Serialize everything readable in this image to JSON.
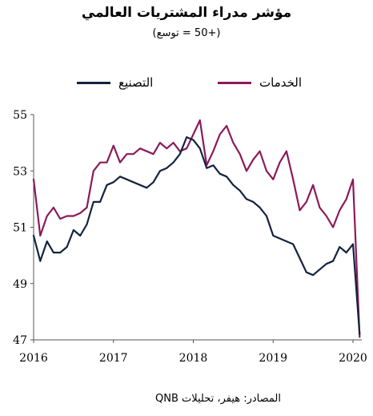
{
  "chart_data": {
    "type": "line",
    "title": "مؤشر مدراء المشتريات العالمي",
    "subtitle": "(+50 = توسع)",
    "source": "المصادر: هيفر، تحليلات QNB",
    "ylim": [
      47,
      55
    ],
    "xlim": [
      2016,
      2020.1
    ],
    "y_ticks": [
      "47",
      "49",
      "51",
      "53",
      "55"
    ],
    "x_ticks": [
      "2016",
      "2017",
      "2018",
      "2019",
      "2020"
    ],
    "grid": false,
    "legend_position": "top",
    "series": [
      {
        "name": "الخدمات",
        "color": "#8b1a5a",
        "x": [
          2016.0,
          2016.083,
          2016.167,
          2016.25,
          2016.333,
          2016.417,
          2016.5,
          2016.583,
          2016.667,
          2016.75,
          2016.833,
          2016.917,
          2017.0,
          2017.083,
          2017.167,
          2017.25,
          2017.333,
          2017.417,
          2017.5,
          2017.583,
          2017.667,
          2017.75,
          2017.833,
          2017.917,
          2018.0,
          2018.083,
          2018.167,
          2018.25,
          2018.333,
          2018.417,
          2018.5,
          2018.583,
          2018.667,
          2018.75,
          2018.833,
          2018.917,
          2019.0,
          2019.083,
          2019.167,
          2019.25,
          2019.333,
          2019.417,
          2019.5,
          2019.583,
          2019.667,
          2019.75,
          2019.833,
          2019.917,
          2020.0,
          2020.083
        ],
        "values": [
          52.7,
          50.7,
          51.4,
          51.7,
          51.3,
          51.4,
          51.4,
          51.5,
          51.7,
          53.0,
          53.3,
          53.3,
          53.9,
          53.3,
          53.6,
          53.6,
          53.8,
          53.7,
          53.6,
          54.0,
          53.8,
          54.0,
          53.7,
          53.8,
          54.3,
          54.8,
          53.2,
          53.7,
          54.3,
          54.6,
          54.0,
          53.6,
          53.0,
          53.4,
          53.7,
          53.0,
          52.7,
          53.3,
          53.7,
          52.7,
          51.6,
          51.9,
          52.5,
          51.7,
          51.4,
          51.0,
          51.6,
          52.0,
          52.7,
          47.1
        ]
      },
      {
        "name": "التصنيع",
        "color": "#13233f",
        "x": [
          2016.0,
          2016.083,
          2016.167,
          2016.25,
          2016.333,
          2016.417,
          2016.5,
          2016.583,
          2016.667,
          2016.75,
          2016.833,
          2016.917,
          2017.0,
          2017.083,
          2017.167,
          2017.25,
          2017.333,
          2017.417,
          2017.5,
          2017.583,
          2017.667,
          2017.75,
          2017.833,
          2017.917,
          2018.0,
          2018.083,
          2018.167,
          2018.25,
          2018.333,
          2018.417,
          2018.5,
          2018.583,
          2018.667,
          2018.75,
          2018.833,
          2018.917,
          2019.0,
          2019.083,
          2019.167,
          2019.25,
          2019.333,
          2019.417,
          2019.5,
          2019.583,
          2019.667,
          2019.75,
          2019.833,
          2019.917,
          2020.0,
          2020.083
        ],
        "values": [
          50.7,
          49.8,
          50.5,
          50.1,
          50.1,
          50.3,
          50.9,
          50.7,
          51.1,
          51.9,
          51.9,
          52.5,
          52.6,
          52.8,
          52.7,
          52.6,
          52.5,
          52.4,
          52.6,
          53.0,
          53.1,
          53.3,
          53.6,
          54.2,
          54.1,
          53.8,
          53.1,
          53.2,
          52.9,
          52.8,
          52.5,
          52.3,
          52.0,
          51.9,
          51.7,
          51.4,
          50.7,
          50.6,
          50.5,
          50.4,
          49.9,
          49.4,
          49.3,
          49.5,
          49.7,
          49.8,
          50.3,
          50.1,
          50.4,
          47.2
        ]
      }
    ]
  }
}
